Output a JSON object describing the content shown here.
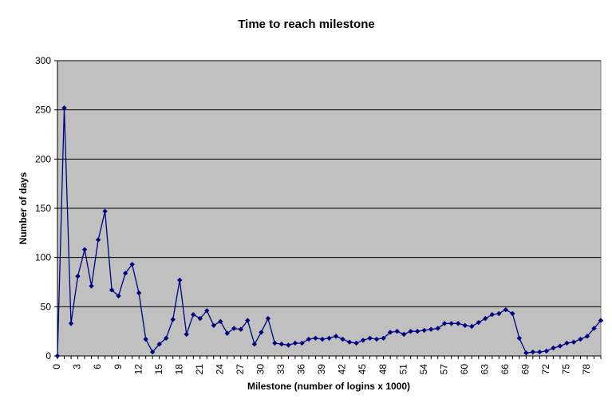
{
  "chart_data": {
    "type": "line",
    "title": "Time to reach milestone",
    "xlabel": "Milestone (number of logins x 1000)",
    "ylabel": "Number of days",
    "ylim": [
      0,
      300
    ],
    "yticks": [
      0,
      50,
      100,
      150,
      200,
      250,
      300
    ],
    "xlim": [
      0,
      80
    ],
    "xticks": [
      0,
      3,
      6,
      9,
      12,
      15,
      18,
      21,
      24,
      27,
      30,
      33,
      36,
      39,
      42,
      45,
      48,
      51,
      54,
      57,
      60,
      63,
      66,
      69,
      72,
      75,
      78
    ],
    "grid": "horizontal",
    "legend": "none",
    "colors": {
      "plot_background": "#C0C0C0",
      "series": "#000080",
      "gridline": "#000000"
    },
    "series": [
      {
        "marker": "diamond",
        "x": [
          0,
          1,
          2,
          3,
          4,
          5,
          6,
          7,
          8,
          9,
          10,
          11,
          12,
          13,
          14,
          15,
          16,
          17,
          18,
          19,
          20,
          21,
          22,
          23,
          24,
          25,
          26,
          27,
          28,
          29,
          30,
          31,
          32,
          33,
          34,
          35,
          36,
          37,
          38,
          39,
          40,
          41,
          42,
          43,
          44,
          45,
          46,
          47,
          48,
          49,
          50,
          51,
          52,
          53,
          54,
          55,
          56,
          57,
          58,
          59,
          60,
          61,
          62,
          63,
          64,
          65,
          66,
          67,
          68,
          69,
          70,
          71,
          72,
          73,
          74,
          75,
          76,
          77,
          78,
          79,
          80
        ],
        "values": [
          0,
          252,
          33,
          81,
          108,
          71,
          118,
          147,
          67,
          61,
          84,
          93,
          64,
          17,
          4,
          12,
          18,
          37,
          77,
          22,
          42,
          38,
          46,
          31,
          35,
          23,
          28,
          27,
          36,
          12,
          24,
          38,
          13,
          12,
          11,
          13,
          13,
          17,
          18,
          17,
          18,
          20,
          17,
          14,
          13,
          16,
          18,
          17,
          18,
          24,
          25,
          22,
          25,
          25,
          26,
          27,
          28,
          33,
          33,
          33,
          31,
          30,
          34,
          38,
          42,
          43,
          47,
          43,
          18,
          3,
          4,
          4,
          5,
          8,
          10,
          13,
          14,
          17,
          20,
          28,
          36
        ]
      }
    ]
  }
}
